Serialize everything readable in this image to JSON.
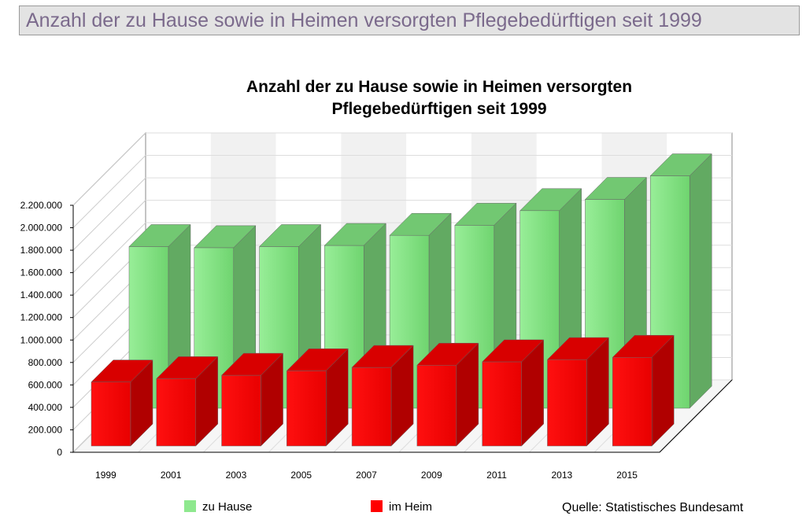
{
  "header": {
    "title": "Anzahl der zu Hause sowie in Heimen versorgten Pflegebedürftigen seit 1999"
  },
  "chart_data": {
    "type": "bar",
    "title_lines": [
      "Anzahl der zu Hause sowie in Heimen versorgten",
      "Pflegebedürftigen seit 1999"
    ],
    "categories": [
      "1999",
      "2001",
      "2003",
      "2005",
      "2007",
      "2009",
      "2011",
      "2013",
      "2015"
    ],
    "series": [
      {
        "name": "zu Hause",
        "color": "#7ddc7d",
        "values": [
          1440000,
          1430000,
          1440000,
          1450000,
          1540000,
          1630000,
          1760000,
          1860000,
          2070000
        ]
      },
      {
        "name": "im Heim",
        "color": "#ff0000",
        "values": [
          570000,
          600000,
          630000,
          670000,
          700000,
          720000,
          750000,
          770000,
          790000
        ]
      }
    ],
    "yticks": [
      "0",
      "200.000",
      "400.000",
      "600.000",
      "800.000",
      "1.000.000",
      "1.200.000",
      "1.400.000",
      "1.600.000",
      "1.800.000",
      "2.000.000",
      "2.200.000"
    ],
    "ylim": [
      0,
      2200000
    ],
    "xlabel": "",
    "ylabel": "",
    "grid": true,
    "legend_position": "bottom",
    "source": "Quelle: Statistisches Bundesamt"
  }
}
